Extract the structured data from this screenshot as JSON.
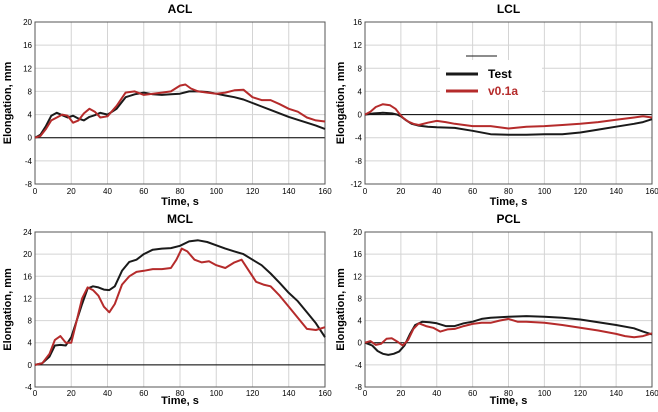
{
  "chart_data": [
    {
      "type": "line",
      "title": "ACL",
      "xlabel": "Time, s",
      "ylabel": "Elongation, mm",
      "xlim": [
        0,
        160
      ],
      "ylim": [
        -8,
        20
      ],
      "xticks": [
        0,
        20,
        40,
        60,
        80,
        100,
        120,
        140,
        160
      ],
      "yticks": [
        -8,
        -4,
        0,
        4,
        8,
        12,
        16,
        20
      ],
      "grid": true,
      "series": [
        {
          "name": "Test",
          "color": "#1a1a1a",
          "x": [
            0,
            3,
            6,
            9,
            12,
            15,
            18,
            21,
            24,
            27,
            30,
            33,
            36,
            40,
            45,
            50,
            55,
            60,
            65,
            70,
            75,
            80,
            85,
            90,
            95,
            100,
            105,
            110,
            115,
            120,
            125,
            130,
            135,
            140,
            145,
            150,
            155,
            160
          ],
          "y": [
            0,
            0.5,
            2.0,
            3.8,
            4.3,
            3.9,
            3.5,
            3.8,
            3.3,
            3.0,
            3.6,
            3.9,
            4.3,
            4.0,
            5.0,
            7.0,
            7.5,
            7.8,
            7.5,
            7.4,
            7.5,
            7.6,
            8.0,
            8.0,
            7.9,
            7.6,
            7.3,
            7.0,
            6.6,
            6.0,
            5.4,
            4.8,
            4.2,
            3.6,
            3.1,
            2.6,
            2.1,
            1.5
          ]
        },
        {
          "name": "v0.1a",
          "color": "#b52b2b",
          "x": [
            0,
            3,
            6,
            9,
            12,
            15,
            18,
            21,
            24,
            27,
            30,
            33,
            36,
            40,
            45,
            50,
            55,
            60,
            65,
            70,
            75,
            80,
            83,
            86,
            90,
            95,
            100,
            105,
            110,
            115,
            120,
            125,
            130,
            135,
            140,
            145,
            150,
            155,
            160
          ],
          "y": [
            0,
            0.3,
            1.5,
            3.0,
            3.5,
            4.0,
            3.8,
            2.6,
            3.0,
            4.2,
            5.0,
            4.5,
            3.5,
            3.7,
            5.5,
            7.8,
            8.0,
            7.4,
            7.6,
            7.8,
            8.0,
            9.0,
            9.2,
            8.5,
            8.0,
            7.8,
            7.6,
            7.8,
            8.2,
            8.3,
            7.0,
            6.5,
            6.5,
            5.8,
            5.0,
            4.5,
            3.5,
            3.0,
            2.8
          ]
        }
      ]
    },
    {
      "type": "line",
      "title": "LCL",
      "xlabel": "Time, s",
      "ylabel": "Elongation, mm",
      "xlim": [
        0,
        160
      ],
      "ylim": [
        -12,
        16
      ],
      "xticks": [
        0,
        20,
        40,
        60,
        80,
        100,
        120,
        140,
        160
      ],
      "yticks": [
        -12,
        -8,
        -4,
        0,
        4,
        8,
        12,
        16
      ],
      "grid": true,
      "legend_position": "upper-middle",
      "series": [
        {
          "name": "Test",
          "color": "#1a1a1a",
          "x": [
            0,
            5,
            10,
            15,
            18,
            20,
            23,
            26,
            30,
            35,
            40,
            50,
            60,
            70,
            80,
            90,
            100,
            110,
            120,
            130,
            140,
            150,
            155,
            160
          ],
          "y": [
            0,
            0.2,
            0.3,
            0.2,
            0,
            -0.3,
            -1.0,
            -1.6,
            -1.9,
            -2.1,
            -2.2,
            -2.3,
            -2.8,
            -3.4,
            -3.5,
            -3.5,
            -3.4,
            -3.4,
            -3.1,
            -2.6,
            -2.1,
            -1.6,
            -1.3,
            -0.8
          ]
        },
        {
          "name": "v0.1a",
          "color": "#b52b2b",
          "x": [
            0,
            3,
            6,
            10,
            14,
            17,
            19,
            21,
            24,
            27,
            30,
            35,
            40,
            45,
            50,
            60,
            70,
            80,
            90,
            100,
            110,
            120,
            130,
            140,
            150,
            155,
            160
          ],
          "y": [
            0,
            0.5,
            1.3,
            1.8,
            1.6,
            1.0,
            0.2,
            -0.5,
            -1.2,
            -1.6,
            -1.8,
            -1.4,
            -1.1,
            -1.3,
            -1.6,
            -2.0,
            -2.0,
            -2.4,
            -2.1,
            -2.0,
            -1.8,
            -1.6,
            -1.3,
            -0.9,
            -0.5,
            -0.3,
            -0.5
          ]
        }
      ]
    },
    {
      "type": "line",
      "title": "MCL",
      "xlabel": "Time, s",
      "ylabel": "Elongation, mm",
      "xlim": [
        0,
        160
      ],
      "ylim": [
        -4,
        24
      ],
      "xticks": [
        0,
        20,
        40,
        60,
        80,
        100,
        120,
        140,
        160
      ],
      "yticks": [
        -4,
        0,
        4,
        8,
        12,
        16,
        20,
        24
      ],
      "grid": true,
      "series": [
        {
          "name": "Test",
          "color": "#1a1a1a",
          "x": [
            0,
            4,
            8,
            11,
            14,
            17,
            20,
            23,
            26,
            29,
            32,
            35,
            38,
            41,
            44,
            48,
            52,
            56,
            60,
            65,
            70,
            75,
            80,
            85,
            90,
            95,
            100,
            105,
            110,
            115,
            120,
            125,
            130,
            135,
            140,
            145,
            150,
            155,
            160
          ],
          "y": [
            0,
            0.3,
            1.5,
            3.5,
            3.6,
            3.5,
            5.0,
            8.0,
            11.0,
            13.8,
            14.2,
            14.0,
            13.6,
            13.5,
            14.2,
            17.0,
            18.6,
            19.0,
            20.0,
            20.8,
            21.0,
            21.1,
            21.5,
            22.3,
            22.5,
            22.2,
            21.6,
            21.0,
            20.5,
            20.0,
            19.0,
            18.0,
            16.5,
            14.8,
            13.0,
            11.5,
            9.5,
            7.5,
            5.0
          ]
        },
        {
          "name": "v0.1a",
          "color": "#b52b2b",
          "x": [
            0,
            4,
            8,
            11,
            14,
            17,
            20,
            23,
            26,
            29,
            32,
            35,
            38,
            41,
            44,
            48,
            52,
            56,
            60,
            65,
            70,
            75,
            78,
            81,
            84,
            88,
            92,
            96,
            100,
            105,
            110,
            114,
            118,
            122,
            126,
            130,
            135,
            140,
            145,
            150,
            155,
            160
          ],
          "y": [
            0,
            0.3,
            2.0,
            4.5,
            5.2,
            4.0,
            4.0,
            8.0,
            12.0,
            14.0,
            13.5,
            12.5,
            10.5,
            9.5,
            11.0,
            14.5,
            16.0,
            16.8,
            17.0,
            17.3,
            17.3,
            17.5,
            19.0,
            21.0,
            20.5,
            19.0,
            18.5,
            18.7,
            18.0,
            17.5,
            18.5,
            19.0,
            17.0,
            15.0,
            14.5,
            14.2,
            12.5,
            10.5,
            8.5,
            6.5,
            6.3,
            6.8
          ]
        }
      ]
    },
    {
      "type": "line",
      "title": "PCL",
      "xlabel": "Time, s",
      "ylabel": "Elongation, mm",
      "xlim": [
        0,
        160
      ],
      "ylim": [
        -8,
        20
      ],
      "xticks": [
        0,
        20,
        40,
        60,
        80,
        100,
        120,
        140,
        160
      ],
      "yticks": [
        -8,
        -4,
        0,
        4,
        8,
        12,
        16,
        20
      ],
      "grid": true,
      "series": [
        {
          "name": "Test",
          "color": "#1a1a1a",
          "x": [
            0,
            4,
            7,
            10,
            13,
            16,
            19,
            22,
            25,
            28,
            32,
            36,
            40,
            45,
            50,
            55,
            60,
            65,
            70,
            80,
            90,
            100,
            110,
            120,
            130,
            140,
            150,
            155,
            160
          ],
          "y": [
            0,
            -0.5,
            -1.5,
            -2.0,
            -2.2,
            -2.0,
            -1.6,
            -0.5,
            1.5,
            3.2,
            3.8,
            3.7,
            3.5,
            3.0,
            3.0,
            3.5,
            3.8,
            4.3,
            4.5,
            4.7,
            4.8,
            4.7,
            4.5,
            4.2,
            3.7,
            3.2,
            2.6,
            2.0,
            1.5
          ]
        },
        {
          "name": "v0.1a",
          "color": "#b52b2b",
          "x": [
            0,
            3,
            6,
            9,
            12,
            15,
            18,
            21,
            24,
            27,
            30,
            34,
            38,
            42,
            46,
            50,
            55,
            60,
            65,
            70,
            75,
            80,
            85,
            90,
            95,
            100,
            110,
            120,
            130,
            140,
            145,
            150,
            155,
            160
          ],
          "y": [
            0,
            0.3,
            -0.4,
            -0.2,
            0.7,
            0.8,
            0.2,
            -0.5,
            0.5,
            2.5,
            3.5,
            3.0,
            2.7,
            2.0,
            2.4,
            2.5,
            3.0,
            3.4,
            3.6,
            3.6,
            4.0,
            4.3,
            3.8,
            3.8,
            3.7,
            3.6,
            3.2,
            2.7,
            2.2,
            1.6,
            1.2,
            1.0,
            1.2,
            1.7
          ]
        }
      ]
    }
  ]
}
